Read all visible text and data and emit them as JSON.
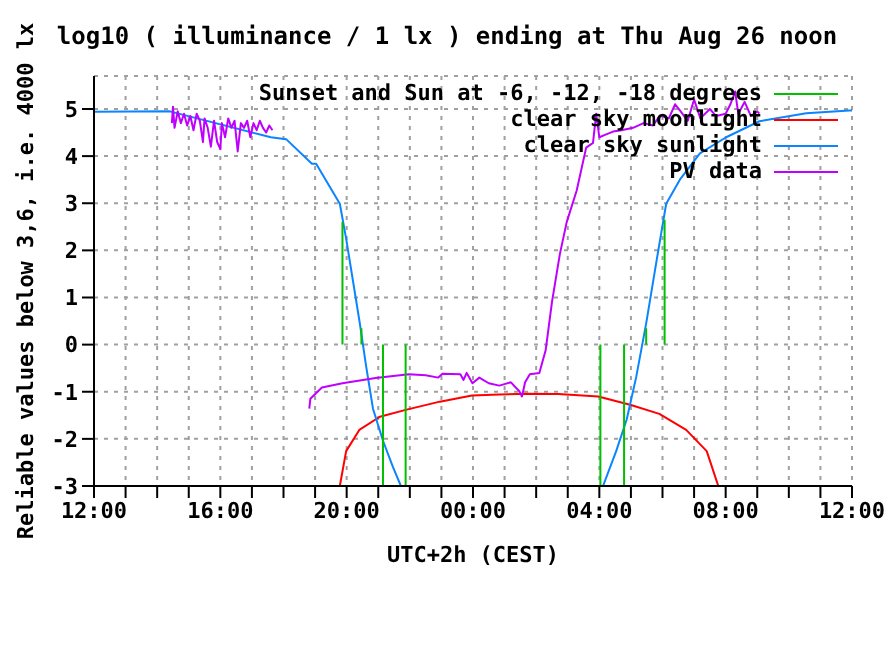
{
  "chart_data": {
    "type": "line",
    "title": "log10 ( illuminance / 1 lx ) ending at Thu Aug 26 noon",
    "xlabel": "UTC+2h (CEST)",
    "ylabel": "Reliable values below 3,6, i.e. 4000 lx",
    "xlim": [
      "--08-25T12:00",
      "--08-26T12:00"
    ],
    "ylim": [
      -3,
      5.7
    ],
    "xticks": [
      {
        "value": "--08-25T12:00",
        "label": "12:00"
      },
      {
        "value": "--08-25T13:00",
        "label": null
      },
      {
        "value": "--08-25T14:00",
        "label": null
      },
      {
        "value": "--08-25T15:00",
        "label": null
      },
      {
        "value": "--08-25T16:00",
        "label": "16:00"
      },
      {
        "value": "--08-25T17:00",
        "label": null
      },
      {
        "value": "--08-25T18:00",
        "label": null
      },
      {
        "value": "--08-25T19:00",
        "label": null
      },
      {
        "value": "--08-25T20:00",
        "label": "20:00"
      },
      {
        "value": "--08-25T21:00",
        "label": null
      },
      {
        "value": "--08-25T22:00",
        "label": null
      },
      {
        "value": "--08-25T23:00",
        "label": null
      },
      {
        "value": "--08-26T00:00",
        "label": "00:00"
      },
      {
        "value": "--08-26T01:00",
        "label": null
      },
      {
        "value": "--08-26T02:00",
        "label": null
      },
      {
        "value": "--08-26T03:00",
        "label": null
      },
      {
        "value": "--08-26T04:00",
        "label": "04:00"
      },
      {
        "value": "--08-26T05:00",
        "label": null
      },
      {
        "value": "--08-26T06:00",
        "label": null
      },
      {
        "value": "--08-26T07:00",
        "label": null
      },
      {
        "value": "--08-26T08:00",
        "label": "08:00"
      },
      {
        "value": "--08-26T09:00",
        "label": null
      },
      {
        "value": "--08-26T10:00",
        "label": null
      },
      {
        "value": "--08-26T11:00",
        "label": null
      },
      {
        "value": "--08-26T12:00",
        "label": "12:00"
      }
    ],
    "yticks": [
      -3,
      -2,
      -1,
      0,
      1,
      2,
      3,
      4,
      5
    ],
    "grid": true,
    "legend": "top right",
    "marker": "none",
    "line_style": "solid",
    "series": [
      {
        "name": "Sunset and Sun at -6, -12, -18 degrees",
        "color": "#00c000",
        "x": [
          "--08-25T19:52",
          "--08-25T19:52",
          null,
          "--08-25T20:28",
          "--08-25T20:28",
          null,
          "--08-25T21:09",
          "--08-25T21:09",
          null,
          "--08-25T21:52",
          "--08-25T21:52",
          null,
          "--08-26T04:02",
          "--08-26T04:02",
          null,
          "--08-26T04:47",
          "--08-26T04:47",
          null,
          "--08-26T05:29",
          "--08-26T05:29",
          null,
          "--08-26T06:04",
          "--08-26T06:04"
        ],
        "values": [
          2.6,
          0,
          null,
          0.35,
          0,
          null,
          0,
          -3,
          null,
          0,
          -3,
          null,
          0,
          -3,
          null,
          0,
          -3,
          null,
          0.35,
          0,
          null,
          2.65,
          0
        ]
      },
      {
        "name": "clear sky moonlight",
        "color": "#ff0000",
        "x": [
          "--08-25T19:47",
          "--08-25T19:59",
          "--08-25T20:24",
          "--08-25T21:03",
          "--08-25T21:54",
          "--08-25T22:57",
          "--08-25T23:58",
          "--08-26T00:50",
          "--08-26T01:42",
          "--08-26T02:42",
          "--08-26T03:58",
          "--08-26T05:00",
          "--08-26T05:54",
          "--08-26T06:45",
          "--08-26T07:24",
          "--08-26T07:46"
        ],
        "values": [
          -3,
          -2.26,
          -1.81,
          -1.53,
          -1.38,
          -1.21,
          -1.08,
          -1.06,
          -1.04,
          -1.05,
          -1.1,
          -1.28,
          -1.47,
          -1.81,
          -2.26,
          -3
        ]
      },
      {
        "name": "clear sky sunlight",
        "color": "#0a84ff",
        "x": [
          "--08-25T12:00",
          "--08-25T14:24",
          "--08-25T17:36",
          "--08-25T18:05",
          "--08-25T18:54",
          "--08-25T19:02",
          "--08-25T19:47",
          "--08-25T19:59",
          "--08-25T20:12",
          "--08-25T20:25",
          "--08-25T20:37",
          "--08-25T20:50",
          "--08-25T21:09",
          "--08-25T21:28",
          "--08-25T21:43",
          "--08-26T04:07",
          "--08-26T04:32",
          "--08-26T04:52",
          "--08-26T05:10",
          "--08-26T05:29",
          "--08-26T05:49",
          "--08-26T06:07",
          "--08-26T06:33",
          "--08-26T07:11",
          "--08-26T08:01",
          "--08-26T09:04",
          "--08-26T10:33",
          "--08-26T11:55",
          "--08-26T12:00"
        ],
        "values": [
          4.94,
          4.95,
          4.4,
          4.36,
          3.84,
          3.84,
          2.99,
          2.25,
          1.35,
          0.45,
          -0.46,
          -1.36,
          -2.04,
          -2.6,
          -3,
          -3,
          -2.26,
          -1.59,
          -0.69,
          0.45,
          1.8,
          2.99,
          3.5,
          4.06,
          4.4,
          4.74,
          4.91,
          4.97,
          4.97
        ]
      },
      {
        "name": "PV data",
        "color": "#bf00ff",
        "x": [
          "--08-25T14:28",
          "--08-25T14:30",
          "--08-25T14:33",
          "--08-25T14:39",
          "--08-25T14:45",
          "--08-25T14:51",
          "--08-25T14:57",
          "--08-25T15:03",
          "--08-25T15:09",
          "--08-25T15:15",
          "--08-25T15:21",
          "--08-25T15:27",
          "--08-25T15:30",
          "--08-25T15:36",
          "--08-25T15:42",
          "--08-25T15:48",
          "--08-25T15:54",
          "--08-25T16:00",
          "--08-25T16:03",
          "--08-25T16:09",
          "--08-25T16:15",
          "--08-25T16:21",
          "--08-25T16:27",
          "--08-25T16:33",
          "--08-25T16:39",
          "--08-25T16:45",
          "--08-25T16:51",
          "--08-25T16:57",
          "--08-25T17:03",
          "--08-25T17:09",
          "--08-25T17:15",
          "--08-25T17:21",
          "--08-25T17:27",
          "--08-25T17:33",
          "--08-25T17:39",
          "--08-25T18:12",
          "--08-25T18:49",
          "--08-25T18:51",
          "--08-25T19:13",
          "--08-25T19:52",
          "--08-25T20:55",
          "--08-25T21:58",
          "--08-25T22:30",
          "--08-25T22:54",
          "--08-25T23:02",
          "--08-25T23:36",
          "--08-25T23:42",
          "--08-25T23:48",
          "--08-25T23:59",
          "--08-26T00:12",
          "--08-26T00:30",
          "--08-26T00:50",
          "--08-26T01:12",
          "--08-26T01:28",
          "--08-26T01:33",
          "--08-26T01:39",
          "--08-26T01:48",
          "--08-26T02:06",
          "--08-26T02:18",
          "--08-26T02:30",
          "--08-26T02:45",
          "--08-26T02:58",
          "--08-26T03:17",
          "--08-26T03:35",
          "--08-26T03:48",
          "--08-26T03:54",
          "--08-26T04:00",
          "--08-26T04:13",
          "--08-26T04:26",
          "--08-26T04:42",
          "--08-26T05:04",
          "--08-26T05:24",
          "--08-26T05:42",
          "--08-26T05:55",
          "--08-26T06:12",
          "--08-26T06:24",
          "--08-26T06:33",
          "--08-26T06:48",
          "--08-26T07:00",
          "--08-26T07:12",
          "--08-26T07:30",
          "--08-26T07:42",
          "--08-26T08:00",
          "--08-26T08:09",
          "--08-26T08:18",
          "--08-26T08:24",
          "--08-26T08:36",
          "--08-26T08:48",
          "--08-26T09:00",
          "--08-26T09:04"
        ],
        "values": [
          4.7,
          5.05,
          4.6,
          4.95,
          4.7,
          4.9,
          4.65,
          4.85,
          4.55,
          4.9,
          4.75,
          4.3,
          4.8,
          4.6,
          4.2,
          4.75,
          4.3,
          4.15,
          4.7,
          4.4,
          4.8,
          4.6,
          4.75,
          4.1,
          4.7,
          4.6,
          4.75,
          4.4,
          4.7,
          4.55,
          4.75,
          4.6,
          4.5,
          4.65,
          4.55,
          null,
          -1.36,
          -1.15,
          -0.91,
          -0.82,
          -0.71,
          -0.63,
          -0.65,
          -0.7,
          -0.62,
          -0.63,
          -0.75,
          -0.6,
          -0.82,
          -0.7,
          -0.82,
          -0.87,
          -0.8,
          -0.99,
          -1.1,
          -0.8,
          -0.63,
          -0.6,
          -0.12,
          0.9,
          1.92,
          2.6,
          3.27,
          4.18,
          4.28,
          4.9,
          4.4,
          4.46,
          4.52,
          4.55,
          4.6,
          4.7,
          4.65,
          4.86,
          4.8,
          5.1,
          4.97,
          4.75,
          5.2,
          4.8,
          5.0,
          4.85,
          4.9,
          5.1,
          5.37,
          4.9,
          5.15,
          4.85,
          4.95,
          4.9
        ]
      }
    ]
  }
}
